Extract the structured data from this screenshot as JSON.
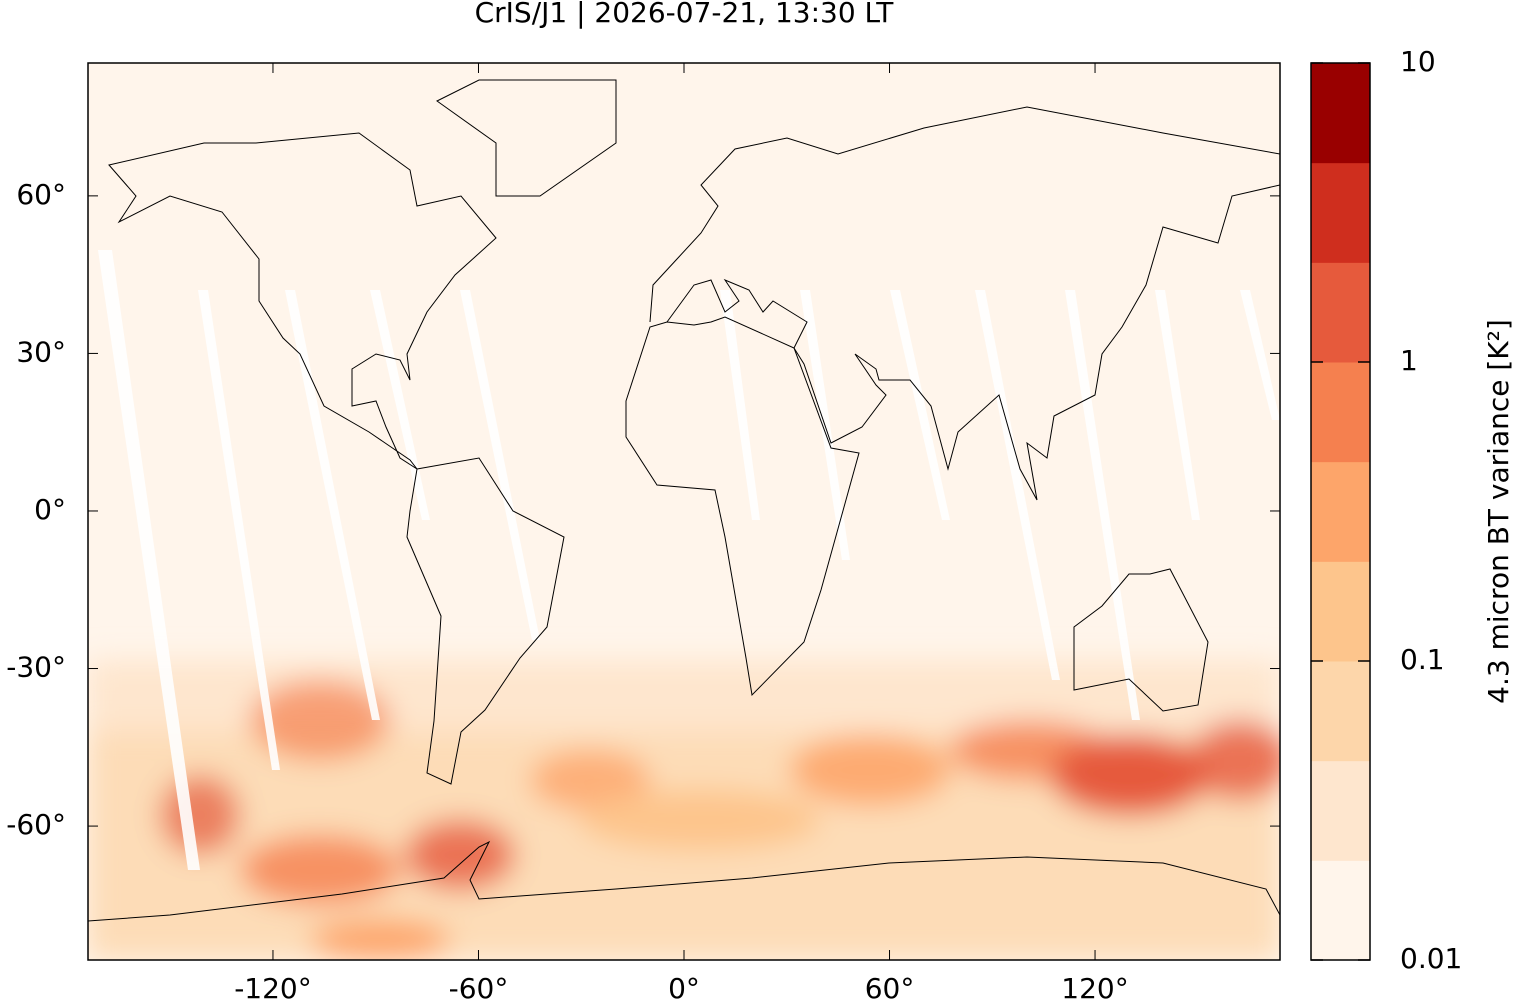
{
  "chart_data": {
    "type": "map",
    "title": "CrIS/J1 | 2026-07-21, 13:30 LT",
    "xlim": [
      -174,
      174
    ],
    "xticks": [
      {
        "value": -120,
        "label": "-120°"
      },
      {
        "value": -60,
        "label": "-60°"
      },
      {
        "value": 0,
        "label": "0°"
      },
      {
        "value": 60,
        "label": "60°"
      },
      {
        "value": 120,
        "label": "120°"
      }
    ],
    "ylim": [
      -85.5,
      85.3
    ],
    "yticks": [
      {
        "value": 60,
        "label": "60°"
      },
      {
        "value": 30,
        "label": "30°"
      },
      {
        "value": 0,
        "label": "0°"
      },
      {
        "value": -30,
        "label": "-30°"
      },
      {
        "value": -60,
        "label": "-60°"
      }
    ],
    "colorbar": {
      "label": "4.3 micron BT variance [K²]",
      "log": true,
      "lim": [
        0.01,
        10
      ],
      "ticks": [
        0.01,
        0.1,
        1,
        10
      ],
      "colors": [
        "#fff5eb",
        "#fee6ce",
        "#fdd6aa",
        "#fdc58c",
        "#fda56a",
        "#f5804f",
        "#e65a3c",
        "#cf2e1e",
        "#990000"
      ]
    }
  }
}
